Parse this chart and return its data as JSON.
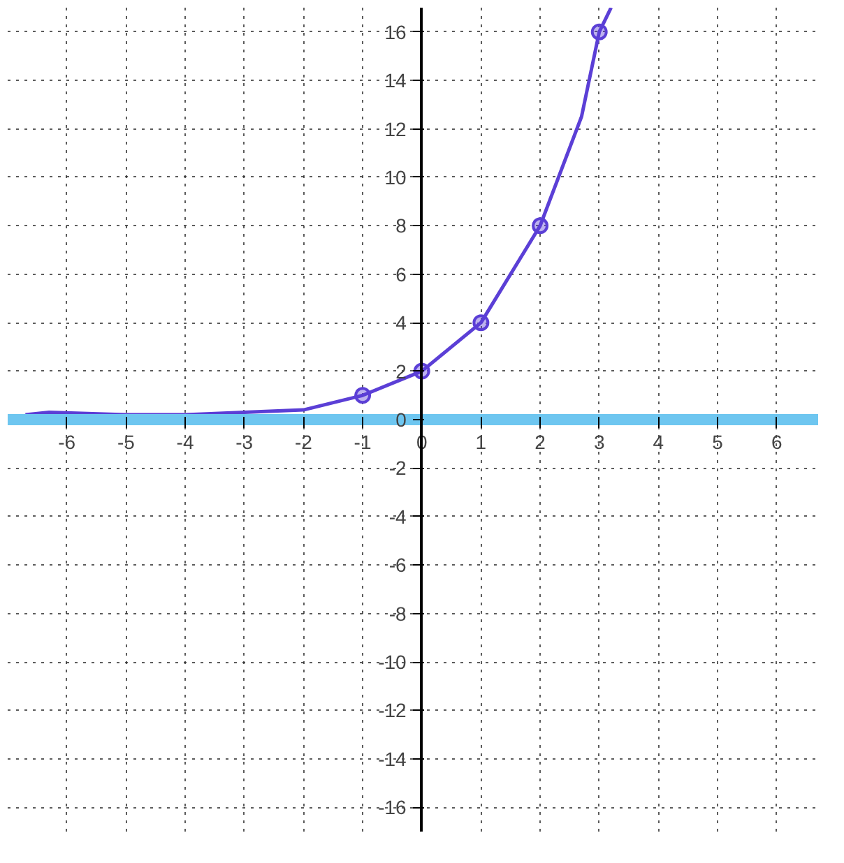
{
  "chart_data": {
    "type": "line",
    "xlim": [
      -7,
      6.7
    ],
    "ylim": [
      -17,
      17
    ],
    "xticks": [
      -6,
      -5,
      -4,
      -3,
      -2,
      -1,
      0,
      1,
      2,
      3,
      4,
      5,
      6
    ],
    "yticks": [
      -16,
      -14,
      -12,
      -10,
      -8,
      -6,
      -4,
      -2,
      0,
      2,
      4,
      6,
      8,
      10,
      12,
      14,
      16
    ],
    "grid": true,
    "line_style": "solid",
    "series": [
      {
        "color": "#5b3fd6",
        "x": [
          -6.7,
          -6.3,
          -5,
          -4,
          -3,
          -2,
          -1,
          0,
          1,
          2,
          2.7,
          3,
          3.2
        ],
        "values": [
          0.2,
          0.3,
          0.2,
          0.2,
          0.3,
          0.4,
          1,
          2,
          4,
          8,
          12.5,
          16,
          17
        ],
        "marker": "none"
      },
      {
        "type": "scatter",
        "color": "#5b3fd6",
        "x": [
          -1,
          0,
          1,
          2,
          3
        ],
        "values": [
          1,
          2,
          4,
          8,
          16
        ],
        "marker": "circle"
      }
    ]
  }
}
